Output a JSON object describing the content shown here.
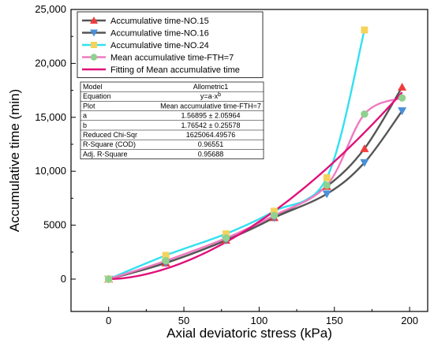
{
  "chart_data": {
    "type": "line",
    "xlabel": "Axial deviatoric stress (kPa)",
    "ylabel": "Accumulative time (min)",
    "xlim": [
      -25,
      212
    ],
    "ylim": [
      -3000,
      25000
    ],
    "x_ticks": [
      0,
      50,
      100,
      150,
      200
    ],
    "y_ticks": [
      0,
      5000,
      10000,
      15000,
      20000,
      25000
    ],
    "y_tick_labels": [
      "0",
      "5000",
      "10,000",
      "15,000",
      "20,000",
      "25,000"
    ],
    "grid": false,
    "legend_position": "top-left",
    "series": [
      {
        "name": "Accumulative time-NO.15",
        "color": "#f03c3c",
        "line_color": "#555555",
        "marker": "triangle-up",
        "x": [
          0,
          38,
          78,
          110,
          145,
          170,
          195
        ],
        "y": [
          0,
          1500,
          3600,
          5700,
          8600,
          12100,
          17800
        ]
      },
      {
        "name": "Accumulative time-NO.16",
        "color": "#4a8fd8",
        "line_color": "#555555",
        "marker": "triangle-down",
        "x": [
          0,
          38,
          78,
          110,
          145,
          170,
          195
        ],
        "y": [
          0,
          1500,
          3600,
          5700,
          7900,
          10800,
          15600
        ]
      },
      {
        "name": "Accumulative time-NO.24",
        "color": "#f5d25a",
        "line_color": "#33e0f0",
        "marker": "square",
        "x": [
          0,
          38,
          78,
          110,
          145,
          170
        ],
        "y": [
          0,
          2200,
          4200,
          6300,
          9400,
          23100
        ]
      },
      {
        "name": "Mean accumulative time-FTH=7",
        "color": "#8fd18f",
        "line_color": "#f07ac0",
        "marker": "circle",
        "x": [
          0,
          38,
          78,
          110,
          145,
          170,
          195
        ],
        "y": [
          0,
          1700,
          3800,
          5900,
          8700,
          15300,
          16800
        ]
      }
    ],
    "fit": {
      "name": "Fitting of Mean accumulative time",
      "color": "#e0107a",
      "a": 1.56895,
      "b": 1.76542,
      "x_range": [
        0,
        195
      ]
    },
    "fit_table": [
      [
        "Model",
        "Allometric1"
      ],
      [
        "Equation",
        "y=a·x"
      ],
      [
        "Plot",
        "Mean accumulative time-FTH=7"
      ],
      [
        "a",
        "1.56895 ± 2.05964"
      ],
      [
        "b",
        "1.76542 ± 0.25578"
      ],
      [
        "Reduced Chi-Sqr",
        "1625064.49576"
      ],
      [
        "R-Square (COD)",
        "0.96551"
      ],
      [
        "Adj. R-Square",
        "0.95688"
      ]
    ],
    "equation_superscript": "b"
  }
}
